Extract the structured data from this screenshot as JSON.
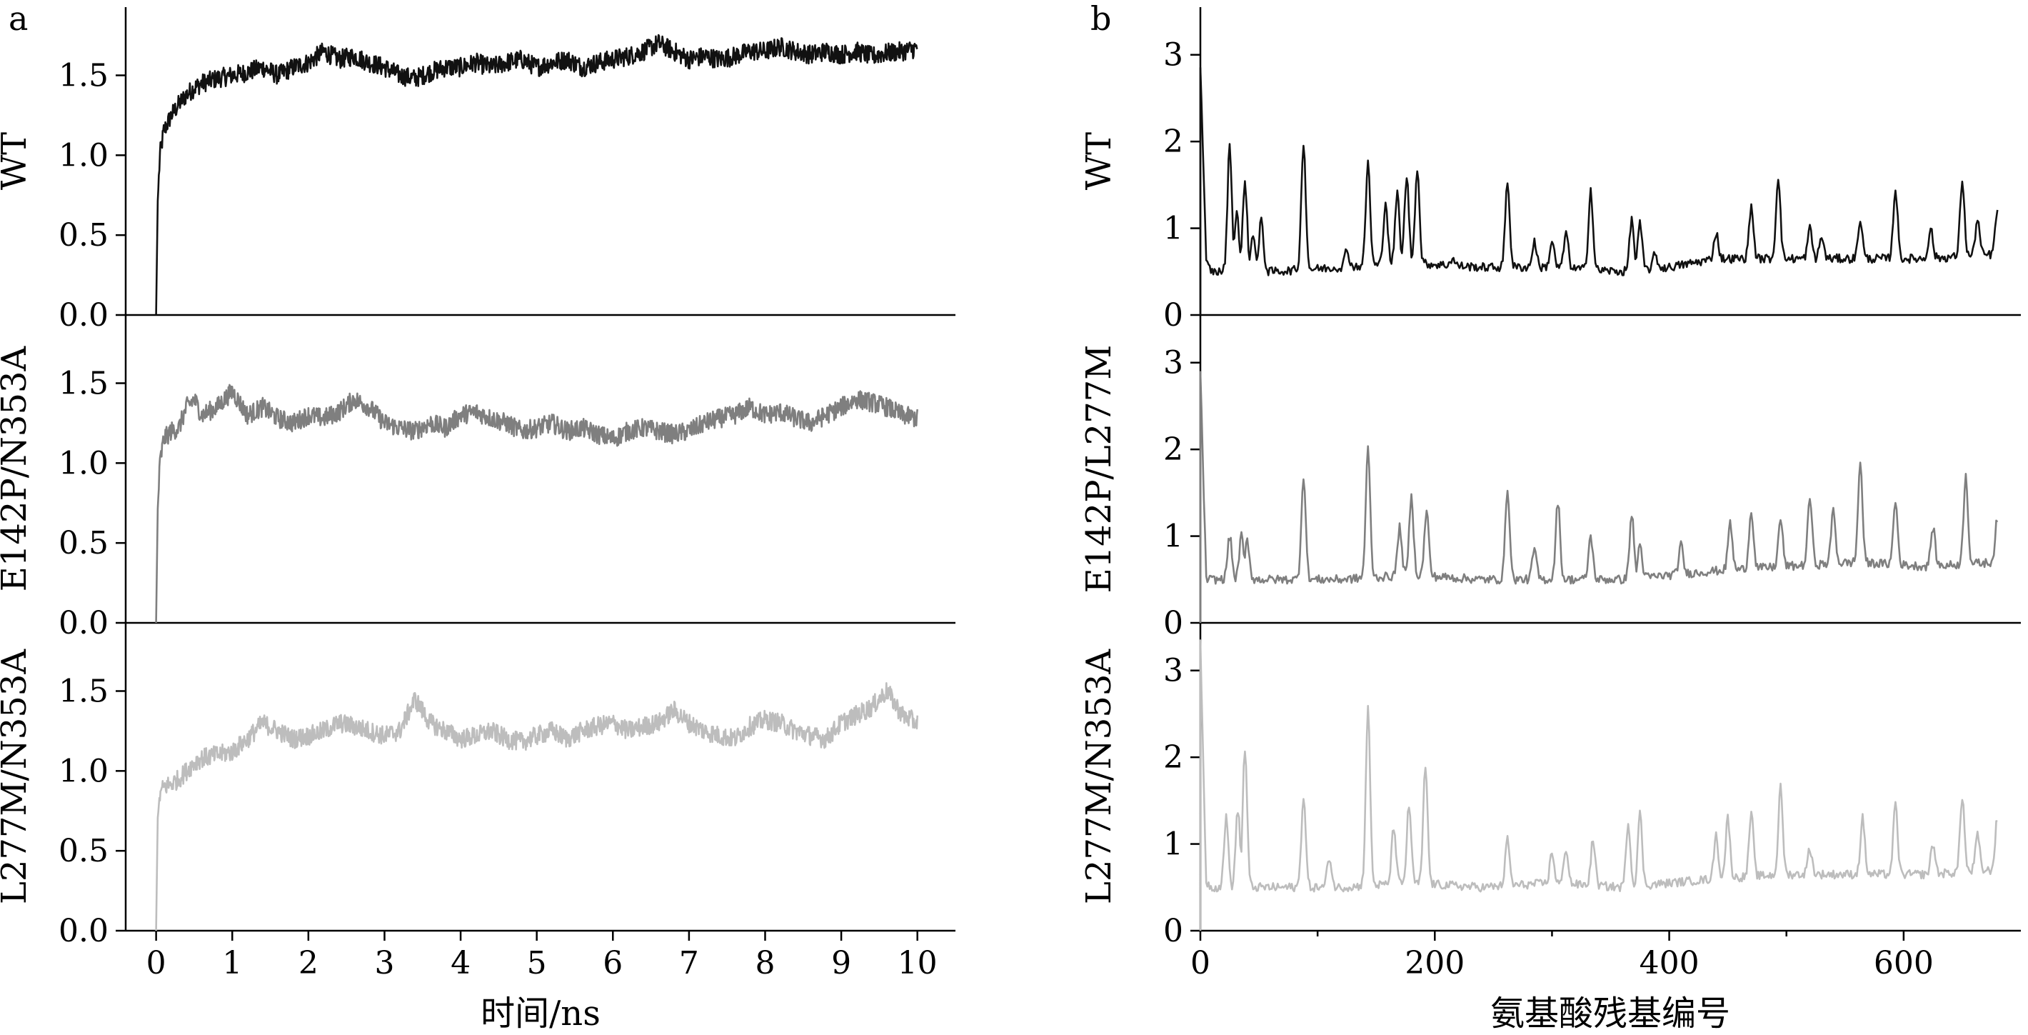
{
  "chart_data": [
    {
      "type": "line",
      "panel_label": "a",
      "xlabel": "时间/ns",
      "xlim": [
        -0.4,
        10.5
      ],
      "x_ticks": [
        0,
        1,
        2,
        3,
        4,
        5,
        6,
        7,
        8,
        9,
        10
      ],
      "x_tick_labels": [
        "0",
        "1",
        "2",
        "3",
        "4",
        "5",
        "6",
        "7",
        "8",
        "9",
        "10"
      ],
      "panels": [
        {
          "ylabel": "WT",
          "ylim": [
            0,
            1.9
          ],
          "y_ticks": [
            0,
            0.5,
            1.0,
            1.5
          ],
          "y_tick_labels": [
            "0.0",
            "0.5",
            "1.0",
            "1.5"
          ],
          "color": "#111111",
          "x": [
            0,
            0.02,
            0.05,
            0.1,
            0.2,
            0.3,
            0.4,
            0.5,
            0.6,
            0.8,
            1.0,
            1.2,
            1.4,
            1.6,
            1.8,
            2.0,
            2.2,
            2.4,
            2.6,
            2.8,
            3.0,
            3.2,
            3.4,
            3.6,
            3.8,
            4.0,
            4.2,
            4.4,
            4.6,
            4.8,
            5.0,
            5.2,
            5.4,
            5.6,
            5.8,
            6.0,
            6.2,
            6.4,
            6.6,
            6.8,
            7.0,
            7.2,
            7.4,
            7.6,
            7.8,
            8.0,
            8.2,
            8.4,
            8.6,
            8.8,
            9.0,
            9.2,
            9.4,
            9.6,
            9.8,
            10.0
          ],
          "y": [
            0.0,
            0.7,
            1.0,
            1.15,
            1.25,
            1.32,
            1.38,
            1.42,
            1.45,
            1.48,
            1.5,
            1.52,
            1.55,
            1.5,
            1.55,
            1.58,
            1.65,
            1.6,
            1.62,
            1.58,
            1.55,
            1.5,
            1.48,
            1.52,
            1.55,
            1.55,
            1.58,
            1.55,
            1.58,
            1.6,
            1.55,
            1.58,
            1.6,
            1.55,
            1.58,
            1.6,
            1.62,
            1.65,
            1.7,
            1.65,
            1.6,
            1.62,
            1.6,
            1.62,
            1.65,
            1.65,
            1.68,
            1.65,
            1.63,
            1.65,
            1.63,
            1.65,
            1.62,
            1.64,
            1.65,
            1.67
          ]
        },
        {
          "ylabel": "E142P/N353A",
          "ylim": [
            0,
            1.9
          ],
          "y_ticks": [
            0,
            0.5,
            1.0,
            1.5
          ],
          "y_tick_labels": [
            "0.0",
            "0.5",
            "1.0",
            "1.5"
          ],
          "color": "#7f7f7f",
          "x": [
            0,
            0.02,
            0.05,
            0.1,
            0.2,
            0.3,
            0.4,
            0.5,
            0.6,
            0.8,
            1.0,
            1.2,
            1.4,
            1.6,
            1.8,
            2.0,
            2.2,
            2.4,
            2.6,
            2.8,
            3.0,
            3.2,
            3.4,
            3.6,
            3.8,
            4.0,
            4.2,
            4.4,
            4.6,
            4.8,
            5.0,
            5.2,
            5.4,
            5.6,
            5.8,
            6.0,
            6.2,
            6.4,
            6.6,
            6.8,
            7.0,
            7.2,
            7.4,
            7.6,
            7.8,
            8.0,
            8.2,
            8.4,
            8.6,
            8.8,
            9.0,
            9.2,
            9.4,
            9.6,
            9.8,
            10.0
          ],
          "y": [
            0.0,
            0.7,
            1.0,
            1.15,
            1.2,
            1.22,
            1.35,
            1.4,
            1.3,
            1.35,
            1.45,
            1.3,
            1.35,
            1.28,
            1.25,
            1.3,
            1.28,
            1.32,
            1.4,
            1.35,
            1.25,
            1.22,
            1.2,
            1.25,
            1.22,
            1.3,
            1.32,
            1.28,
            1.25,
            1.2,
            1.22,
            1.25,
            1.2,
            1.22,
            1.18,
            1.15,
            1.2,
            1.22,
            1.2,
            1.18,
            1.2,
            1.25,
            1.28,
            1.3,
            1.35,
            1.3,
            1.32,
            1.28,
            1.25,
            1.3,
            1.35,
            1.4,
            1.38,
            1.35,
            1.3,
            1.28
          ]
        },
        {
          "ylabel": "L277M/N353A",
          "ylim": [
            0,
            1.9
          ],
          "y_ticks": [
            0,
            0.5,
            1.0,
            1.5
          ],
          "y_tick_labels": [
            "0.0",
            "0.5",
            "1.0",
            "1.5"
          ],
          "color": "#bdbdbd",
          "x": [
            0,
            0.02,
            0.05,
            0.1,
            0.2,
            0.3,
            0.4,
            0.5,
            0.6,
            0.8,
            1.0,
            1.2,
            1.4,
            1.6,
            1.8,
            2.0,
            2.2,
            2.4,
            2.6,
            2.8,
            3.0,
            3.2,
            3.4,
            3.6,
            3.8,
            4.0,
            4.2,
            4.4,
            4.6,
            4.8,
            5.0,
            5.2,
            5.4,
            5.6,
            5.8,
            6.0,
            6.2,
            6.4,
            6.6,
            6.8,
            7.0,
            7.2,
            7.4,
            7.6,
            7.8,
            8.0,
            8.2,
            8.4,
            8.6,
            8.8,
            9.0,
            9.2,
            9.4,
            9.6,
            9.8,
            10.0
          ],
          "y": [
            0.0,
            0.7,
            0.85,
            0.9,
            0.92,
            0.95,
            1.0,
            1.05,
            1.08,
            1.1,
            1.12,
            1.2,
            1.3,
            1.25,
            1.2,
            1.22,
            1.25,
            1.3,
            1.28,
            1.25,
            1.22,
            1.25,
            1.45,
            1.3,
            1.25,
            1.2,
            1.22,
            1.25,
            1.2,
            1.18,
            1.22,
            1.25,
            1.2,
            1.25,
            1.28,
            1.3,
            1.25,
            1.28,
            1.3,
            1.38,
            1.3,
            1.25,
            1.22,
            1.2,
            1.28,
            1.32,
            1.3,
            1.25,
            1.22,
            1.2,
            1.3,
            1.35,
            1.4,
            1.5,
            1.35,
            1.3
          ]
        }
      ]
    },
    {
      "type": "line",
      "panel_label": "b",
      "xlabel": "氨基酸残基编号",
      "xlim": [
        0,
        700
      ],
      "x_ticks": [
        0,
        200,
        400,
        600
      ],
      "x_tick_labels": [
        "0",
        "200",
        "400",
        "600"
      ],
      "panels": [
        {
          "ylabel": "WT",
          "ylim": [
            0,
            3.5
          ],
          "y_ticks": [
            0,
            1,
            2,
            3
          ],
          "y_tick_labels": [
            "0",
            "1",
            "2",
            "3"
          ],
          "color": "#111111",
          "baseline": [
            [
              0,
              2.9
            ],
            [
              5,
              0.6
            ],
            [
              10,
              0.5
            ],
            [
              60,
              0.5
            ],
            [
              120,
              0.55
            ],
            [
              180,
              0.6
            ],
            [
              240,
              0.55
            ],
            [
              300,
              0.55
            ],
            [
              360,
              0.5
            ],
            [
              400,
              0.55
            ],
            [
              440,
              0.65
            ],
            [
              500,
              0.65
            ],
            [
              560,
              0.65
            ],
            [
              620,
              0.65
            ],
            [
              680,
              0.7
            ]
          ],
          "peaks": [
            [
              25,
              1.95
            ],
            [
              31,
              1.2
            ],
            [
              38,
              1.55
            ],
            [
              45,
              0.95
            ],
            [
              52,
              1.1
            ],
            [
              88,
              2.0
            ],
            [
              125,
              0.75
            ],
            [
              143,
              1.75
            ],
            [
              158,
              1.3
            ],
            [
              168,
              1.4
            ],
            [
              176,
              1.6
            ],
            [
              185,
              1.7
            ],
            [
              215,
              0.65
            ],
            [
              262,
              1.55
            ],
            [
              285,
              0.85
            ],
            [
              300,
              0.85
            ],
            [
              312,
              0.95
            ],
            [
              333,
              1.45
            ],
            [
              368,
              1.1
            ],
            [
              375,
              1.05
            ],
            [
              388,
              0.7
            ],
            [
              440,
              0.95
            ],
            [
              470,
              1.25
            ],
            [
              493,
              1.6
            ],
            [
              520,
              1.0
            ],
            [
              530,
              0.9
            ],
            [
              563,
              1.1
            ],
            [
              593,
              1.45
            ],
            [
              623,
              1.0
            ],
            [
              650,
              1.55
            ],
            [
              663,
              1.1
            ],
            [
              680,
              1.2
            ]
          ]
        },
        {
          "ylabel": "E142P/L277M",
          "ylim": [
            0,
            3.5
          ],
          "y_ticks": [
            0,
            1,
            2,
            3
          ],
          "y_tick_labels": [
            "0",
            "1",
            "2",
            "3"
          ],
          "color": "#7f7f7f",
          "baseline": [
            [
              0,
              2.9
            ],
            [
              5,
              0.5
            ],
            [
              10,
              0.5
            ],
            [
              60,
              0.5
            ],
            [
              120,
              0.5
            ],
            [
              180,
              0.55
            ],
            [
              240,
              0.5
            ],
            [
              300,
              0.5
            ],
            [
              360,
              0.5
            ],
            [
              400,
              0.55
            ],
            [
              440,
              0.6
            ],
            [
              500,
              0.65
            ],
            [
              560,
              0.7
            ],
            [
              620,
              0.65
            ],
            [
              680,
              0.7
            ]
          ],
          "peaks": [
            [
              25,
              1.0
            ],
            [
              35,
              1.0
            ],
            [
              40,
              0.95
            ],
            [
              88,
              1.7
            ],
            [
              143,
              2.0
            ],
            [
              170,
              1.1
            ],
            [
              180,
              1.45
            ],
            [
              193,
              1.3
            ],
            [
              262,
              1.55
            ],
            [
              285,
              0.85
            ],
            [
              305,
              1.4
            ],
            [
              333,
              1.0
            ],
            [
              368,
              1.25
            ],
            [
              375,
              0.9
            ],
            [
              410,
              0.9
            ],
            [
              452,
              1.15
            ],
            [
              470,
              1.3
            ],
            [
              495,
              1.2
            ],
            [
              520,
              1.45
            ],
            [
              540,
              1.3
            ],
            [
              563,
              1.85
            ],
            [
              593,
              1.4
            ],
            [
              625,
              1.1
            ],
            [
              653,
              1.7
            ],
            [
              680,
              1.2
            ]
          ]
        },
        {
          "ylabel": "L277M/N353A",
          "ylim": [
            0,
            3.5
          ],
          "y_ticks": [
            0,
            1,
            2,
            3
          ],
          "y_tick_labels": [
            "0",
            "1",
            "2",
            "3"
          ],
          "color": "#bdbdbd",
          "baseline": [
            [
              0,
              3.3
            ],
            [
              5,
              0.55
            ],
            [
              10,
              0.5
            ],
            [
              60,
              0.5
            ],
            [
              120,
              0.5
            ],
            [
              180,
              0.55
            ],
            [
              240,
              0.5
            ],
            [
              300,
              0.55
            ],
            [
              360,
              0.5
            ],
            [
              400,
              0.55
            ],
            [
              440,
              0.6
            ],
            [
              500,
              0.65
            ],
            [
              560,
              0.65
            ],
            [
              620,
              0.65
            ],
            [
              680,
              0.7
            ]
          ],
          "peaks": [
            [
              22,
              1.3
            ],
            [
              32,
              1.4
            ],
            [
              38,
              2.1
            ],
            [
              88,
              1.55
            ],
            [
              110,
              0.85
            ],
            [
              143,
              2.55
            ],
            [
              165,
              1.2
            ],
            [
              178,
              1.45
            ],
            [
              192,
              1.9
            ],
            [
              262,
              1.05
            ],
            [
              300,
              0.9
            ],
            [
              312,
              0.95
            ],
            [
              335,
              1.05
            ],
            [
              365,
              1.25
            ],
            [
              375,
              1.35
            ],
            [
              440,
              1.1
            ],
            [
              450,
              1.3
            ],
            [
              470,
              1.35
            ],
            [
              495,
              1.65
            ],
            [
              520,
              0.95
            ],
            [
              565,
              1.3
            ],
            [
              593,
              1.45
            ],
            [
              625,
              1.0
            ],
            [
              650,
              1.55
            ],
            [
              663,
              1.1
            ],
            [
              680,
              1.3
            ]
          ]
        }
      ]
    }
  ]
}
